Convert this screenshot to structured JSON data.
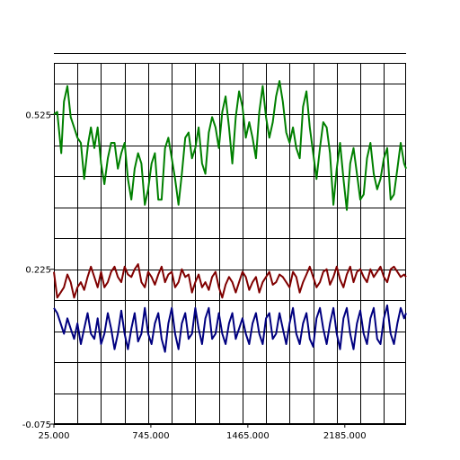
{
  "chart_data": {
    "type": "line",
    "title": "",
    "xlabel": "",
    "ylabel": "",
    "xlim": [
      25,
      2640
    ],
    "ylim": [
      -0.075,
      0.625
    ],
    "x_ticks": [
      25,
      745,
      1465,
      2185
    ],
    "x_tick_labels": [
      "25.000",
      "745.000",
      "1465.000",
      "2185.000"
    ],
    "y_ticks": [
      -0.075,
      0.225,
      0.525
    ],
    "y_tick_labels": [
      "-0.075",
      "0.225",
      "0.525"
    ],
    "grid": true,
    "grid_x_step": 175,
    "grid_y_step": 0.06,
    "colors": {
      "green": "#008000",
      "red": "#800000",
      "blue": "#000080",
      "grid": "#000000"
    },
    "series": [
      {
        "color": "#008000",
        "x": [
          25,
          50,
          80,
          100,
          125,
          150,
          175,
          200,
          225,
          250,
          280,
          300,
          325,
          350,
          375,
          400,
          425,
          450,
          475,
          500,
          525,
          550,
          575,
          600,
          625,
          650,
          675,
          700,
          725,
          750,
          775,
          800,
          825,
          850,
          875,
          900,
          925,
          950,
          975,
          1000,
          1025,
          1050,
          1075,
          1100,
          1125,
          1150,
          1175,
          1200,
          1225,
          1250,
          1275,
          1300,
          1325,
          1350,
          1375,
          1400,
          1425,
          1450,
          1475,
          1500,
          1525,
          1550,
          1575,
          1600,
          1625,
          1650,
          1675,
          1700,
          1725,
          1750,
          1775,
          1800,
          1825,
          1850,
          1875,
          1900,
          1925,
          1950,
          1975,
          2000,
          2025,
          2050,
          2075,
          2100,
          2125,
          2150,
          2175,
          2200,
          2225,
          2250,
          2275,
          2300,
          2325,
          2350,
          2375,
          2400,
          2425,
          2450,
          2475,
          2500,
          2525,
          2550,
          2575,
          2600,
          2625,
          2640
        ],
        "y": [
          0.525,
          0.53,
          0.45,
          0.55,
          0.58,
          0.52,
          0.5,
          0.48,
          0.47,
          0.4,
          0.47,
          0.5,
          0.46,
          0.5,
          0.43,
          0.39,
          0.44,
          0.47,
          0.47,
          0.42,
          0.45,
          0.47,
          0.4,
          0.36,
          0.42,
          0.45,
          0.43,
          0.35,
          0.38,
          0.43,
          0.45,
          0.36,
          0.36,
          0.46,
          0.48,
          0.44,
          0.4,
          0.35,
          0.41,
          0.48,
          0.49,
          0.44,
          0.46,
          0.5,
          0.43,
          0.41,
          0.49,
          0.52,
          0.5,
          0.46,
          0.53,
          0.56,
          0.5,
          0.43,
          0.52,
          0.57,
          0.54,
          0.48,
          0.51,
          0.48,
          0.44,
          0.53,
          0.58,
          0.52,
          0.48,
          0.51,
          0.56,
          0.59,
          0.55,
          0.49,
          0.47,
          0.5,
          0.46,
          0.44,
          0.54,
          0.57,
          0.5,
          0.45,
          0.4,
          0.46,
          0.51,
          0.5,
          0.45,
          0.35,
          0.42,
          0.47,
          0.4,
          0.34,
          0.43,
          0.46,
          0.41,
          0.36,
          0.37,
          0.44,
          0.47,
          0.41,
          0.38,
          0.4,
          0.44,
          0.46,
          0.36,
          0.37,
          0.42,
          0.47,
          0.43,
          0.42
        ]
      },
      {
        "color": "#800000",
        "x": [
          25,
          50,
          75,
          100,
          125,
          150,
          175,
          200,
          225,
          250,
          275,
          300,
          325,
          350,
          375,
          400,
          425,
          450,
          475,
          500,
          525,
          550,
          575,
          600,
          625,
          650,
          675,
          700,
          725,
          750,
          775,
          800,
          825,
          850,
          875,
          900,
          925,
          950,
          975,
          1000,
          1025,
          1050,
          1075,
          1100,
          1125,
          1150,
          1175,
          1200,
          1225,
          1250,
          1275,
          1300,
          1325,
          1350,
          1375,
          1400,
          1425,
          1450,
          1475,
          1500,
          1525,
          1550,
          1575,
          1600,
          1625,
          1650,
          1675,
          1700,
          1725,
          1750,
          1775,
          1800,
          1825,
          1850,
          1875,
          1900,
          1925,
          1950,
          1975,
          2000,
          2025,
          2050,
          2075,
          2100,
          2125,
          2150,
          2175,
          2200,
          2225,
          2250,
          2275,
          2300,
          2325,
          2350,
          2375,
          2400,
          2425,
          2450,
          2475,
          2500,
          2525,
          2550,
          2575,
          2600,
          2625,
          2640
        ],
        "y": [
          0.22,
          0.17,
          0.18,
          0.19,
          0.215,
          0.2,
          0.17,
          0.19,
          0.2,
          0.185,
          0.21,
          0.23,
          0.21,
          0.19,
          0.22,
          0.19,
          0.2,
          0.22,
          0.23,
          0.21,
          0.2,
          0.23,
          0.215,
          0.21,
          0.225,
          0.235,
          0.2,
          0.19,
          0.22,
          0.21,
          0.195,
          0.215,
          0.23,
          0.2,
          0.215,
          0.22,
          0.19,
          0.2,
          0.225,
          0.21,
          0.215,
          0.18,
          0.2,
          0.215,
          0.19,
          0.2,
          0.185,
          0.21,
          0.22,
          0.19,
          0.17,
          0.195,
          0.21,
          0.2,
          0.18,
          0.2,
          0.22,
          0.21,
          0.185,
          0.2,
          0.21,
          0.18,
          0.2,
          0.21,
          0.22,
          0.195,
          0.2,
          0.215,
          0.21,
          0.2,
          0.19,
          0.22,
          0.21,
          0.18,
          0.2,
          0.215,
          0.23,
          0.21,
          0.19,
          0.2,
          0.22,
          0.225,
          0.195,
          0.21,
          0.23,
          0.205,
          0.19,
          0.215,
          0.23,
          0.2,
          0.22,
          0.225,
          0.21,
          0.2,
          0.225,
          0.21,
          0.22,
          0.23,
          0.21,
          0.2,
          0.225,
          0.23,
          0.22,
          0.21,
          0.215,
          0.21
        ]
      },
      {
        "color": "#000080",
        "x": [
          25,
          50,
          75,
          100,
          125,
          150,
          175,
          200,
          225,
          250,
          275,
          300,
          325,
          350,
          375,
          400,
          425,
          450,
          475,
          500,
          525,
          550,
          575,
          600,
          625,
          650,
          675,
          700,
          725,
          750,
          775,
          800,
          825,
          850,
          875,
          900,
          925,
          950,
          975,
          1000,
          1025,
          1050,
          1075,
          1100,
          1125,
          1150,
          1175,
          1200,
          1225,
          1250,
          1275,
          1300,
          1325,
          1350,
          1375,
          1400,
          1425,
          1450,
          1475,
          1500,
          1525,
          1550,
          1575,
          1600,
          1625,
          1650,
          1675,
          1700,
          1725,
          1750,
          1775,
          1800,
          1825,
          1850,
          1875,
          1900,
          1925,
          1950,
          1975,
          2000,
          2025,
          2050,
          2075,
          2100,
          2125,
          2150,
          2175,
          2200,
          2225,
          2250,
          2275,
          2300,
          2325,
          2350,
          2375,
          2400,
          2425,
          2450,
          2475,
          2500,
          2525,
          2550,
          2575,
          2600,
          2625,
          2640
        ],
        "y": [
          0.15,
          0.14,
          0.12,
          0.1,
          0.13,
          0.11,
          0.09,
          0.12,
          0.08,
          0.11,
          0.14,
          0.1,
          0.09,
          0.13,
          0.08,
          0.1,
          0.14,
          0.11,
          0.07,
          0.1,
          0.145,
          0.1,
          0.07,
          0.11,
          0.14,
          0.085,
          0.1,
          0.15,
          0.1,
          0.08,
          0.12,
          0.14,
          0.09,
          0.065,
          0.12,
          0.15,
          0.1,
          0.07,
          0.12,
          0.14,
          0.09,
          0.1,
          0.15,
          0.11,
          0.08,
          0.13,
          0.15,
          0.09,
          0.1,
          0.14,
          0.1,
          0.08,
          0.12,
          0.14,
          0.09,
          0.11,
          0.13,
          0.1,
          0.08,
          0.12,
          0.14,
          0.1,
          0.08,
          0.13,
          0.14,
          0.09,
          0.1,
          0.14,
          0.11,
          0.08,
          0.12,
          0.15,
          0.1,
          0.08,
          0.12,
          0.14,
          0.09,
          0.075,
          0.13,
          0.15,
          0.11,
          0.08,
          0.12,
          0.15,
          0.1,
          0.07,
          0.13,
          0.15,
          0.1,
          0.07,
          0.12,
          0.145,
          0.1,
          0.08,
          0.13,
          0.15,
          0.09,
          0.08,
          0.13,
          0.155,
          0.1,
          0.08,
          0.12,
          0.15,
          0.13,
          0.14
        ]
      }
    ]
  }
}
